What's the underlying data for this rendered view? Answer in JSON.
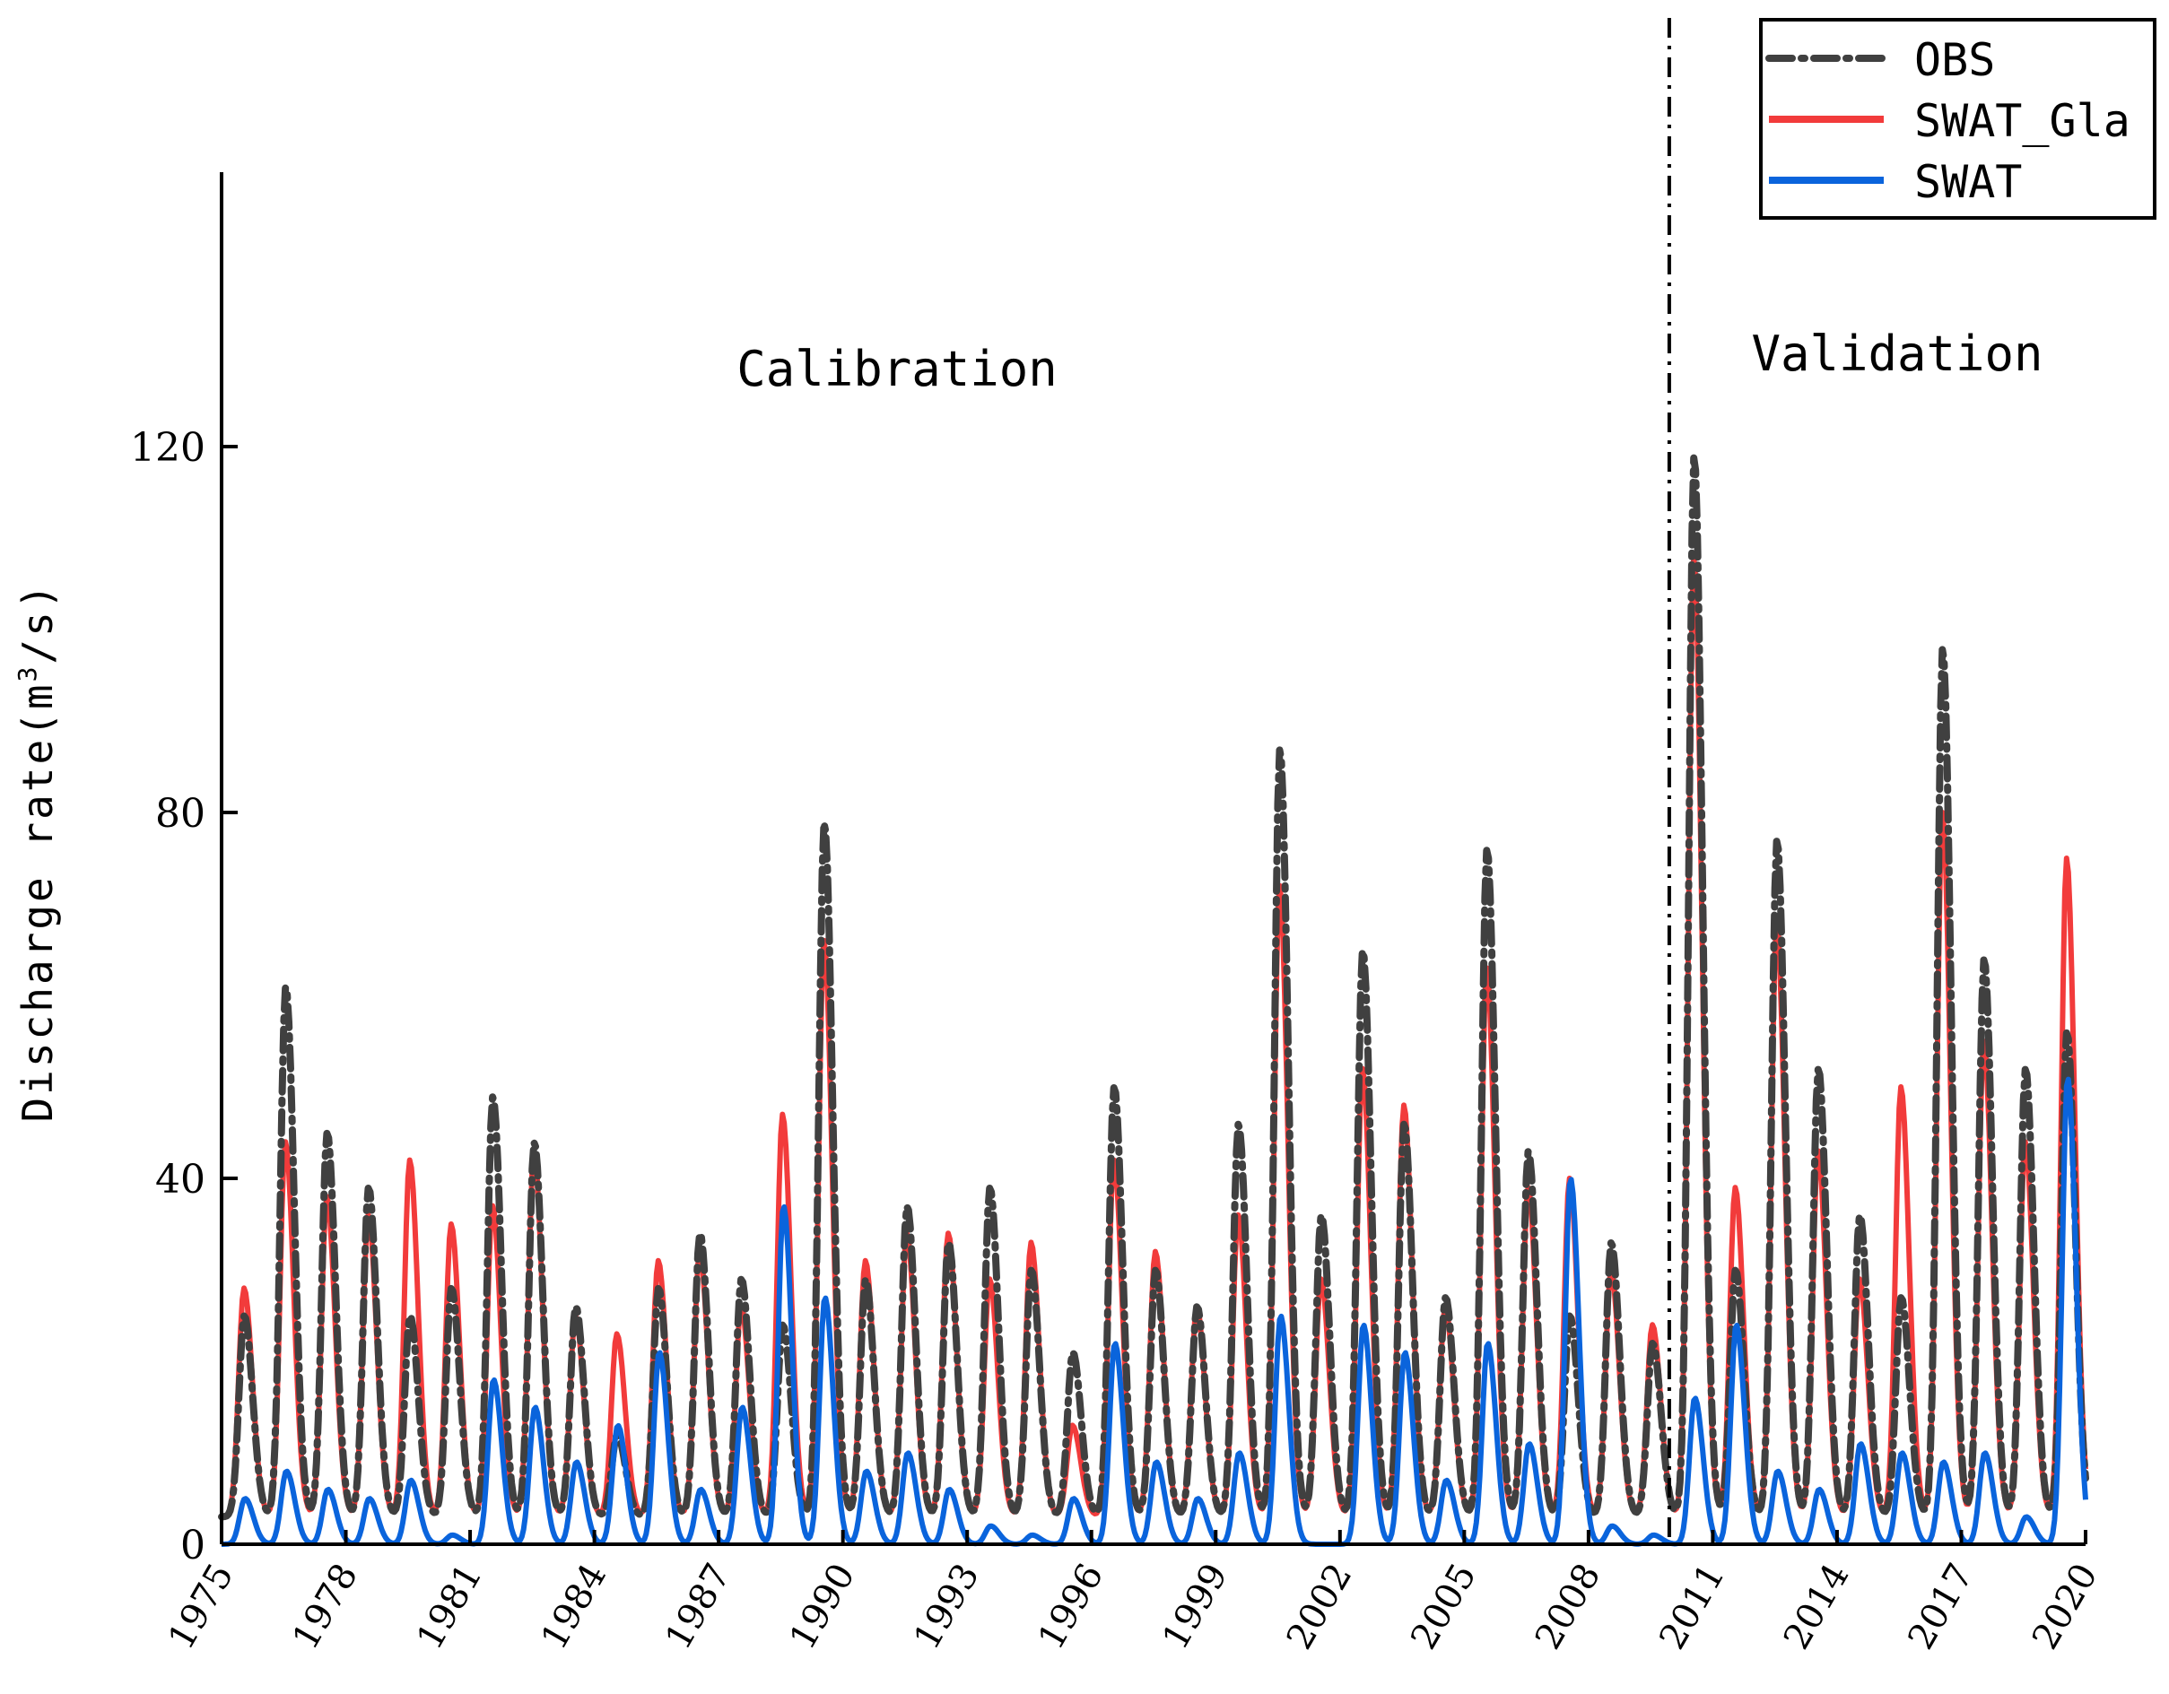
{
  "chart_data": {
    "type": "line",
    "title": "",
    "xlabel": "",
    "ylabel": "Discharge rate(m³/s)",
    "ylabel_parts": {
      "pre": "Discharge rate(m",
      "sup": "3",
      "post": "/s)"
    },
    "xlim": [
      1975,
      2020
    ],
    "ylim": [
      0,
      150
    ],
    "y_ticks": [
      0,
      40,
      80,
      120
    ],
    "x_ticks": [
      1975,
      1978,
      1981,
      1984,
      1987,
      1990,
      1993,
      1996,
      1999,
      2002,
      2005,
      2008,
      2011,
      2014,
      2017,
      2020
    ],
    "split_year": 2009.95,
    "annotations": {
      "calibration": "Calibration",
      "validation": "Validation"
    },
    "legend": {
      "placement": "top-right",
      "entries": [
        "OBS",
        "SWAT_Gla",
        "SWAT"
      ]
    },
    "series": [
      {
        "name": "OBS",
        "color": "#404040",
        "style": "dash-dot",
        "peak_month": 6.6,
        "baseflow": 3,
        "annual_peaks": [
          25,
          61,
          45,
          39,
          25,
          28,
          49,
          44,
          26,
          12,
          28,
          34,
          29,
          24,
          79,
          29,
          37,
          33,
          39,
          30,
          21,
          50,
          30,
          26,
          46,
          87,
          36,
          65,
          46,
          27,
          76,
          43,
          25,
          33,
          22,
          119,
          30,
          77,
          52,
          36,
          27,
          98,
          64,
          52,
          56
        ]
      },
      {
        "name": "SWAT_Gla",
        "color": "#f23b3b",
        "style": "solid",
        "peak_month": 6.5,
        "baseflow": 3,
        "annual_peaks": [
          28,
          44,
          38,
          36,
          42,
          35,
          37,
          43,
          25,
          23,
          31,
          32,
          26,
          47,
          66,
          31,
          34,
          34,
          29,
          33,
          13,
          42,
          32,
          26,
          36,
          72,
          29,
          52,
          48,
          26,
          63,
          39,
          40,
          30,
          24,
          108,
          39,
          68,
          43,
          29,
          50,
          80,
          55,
          44,
          75
        ]
      },
      {
        "name": "SWAT",
        "color": "#0a64dc",
        "style": "solid",
        "peak_month": 6.8,
        "baseflow": 0,
        "annual_peaks": [
          5,
          8,
          6,
          5,
          7,
          1,
          18,
          15,
          9,
          13,
          21,
          6,
          15,
          37,
          27,
          8,
          10,
          6,
          2,
          1,
          5,
          22,
          9,
          5,
          10,
          25,
          0,
          24,
          21,
          7,
          22,
          11,
          40,
          2,
          1,
          16,
          24,
          8,
          6,
          11,
          10,
          9,
          10,
          3,
          51
        ]
      }
    ]
  }
}
